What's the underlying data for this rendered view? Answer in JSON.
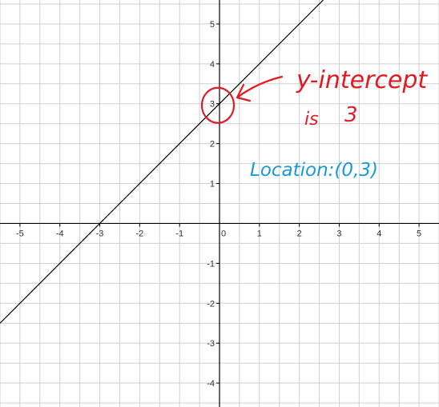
{
  "chart_data": {
    "type": "line",
    "title": "",
    "xlabel": "",
    "ylabel": "",
    "xlim": [
      -5.5,
      5.5
    ],
    "ylim": [
      -4.6,
      5.6
    ],
    "grid": true,
    "x_ticks": [
      -5,
      -4,
      -3,
      -2,
      -1,
      0,
      1,
      2,
      3,
      4,
      5
    ],
    "y_ticks": [
      -4,
      -3,
      -2,
      -1,
      0,
      1,
      2,
      3,
      4,
      5
    ],
    "x_tick_labels": [
      "-5",
      "-4",
      "-3",
      "-2",
      "-1",
      "0",
      "1",
      "2",
      "3",
      "4",
      "5"
    ],
    "y_tick_labels": [
      "-4",
      "-3",
      "-2",
      "-1",
      "0",
      "1",
      "2",
      "3",
      "4",
      "5"
    ],
    "series": [
      {
        "equation": "y = x + 3",
        "slope": 1,
        "intercept": 3,
        "x": [
          -5.5,
          2.6
        ],
        "y": [
          -2.5,
          5.6
        ],
        "color": "#000000"
      }
    ],
    "annotations": {
      "circled_point": {
        "x": 0,
        "y": 3,
        "color": "#e01b24"
      },
      "note_line1": "y-intercept",
      "note_line2": "is",
      "note_value": "3",
      "note_color": "#e01b24",
      "location_text": "Location:(0,3)",
      "location_color": "#1a9ad6"
    }
  }
}
